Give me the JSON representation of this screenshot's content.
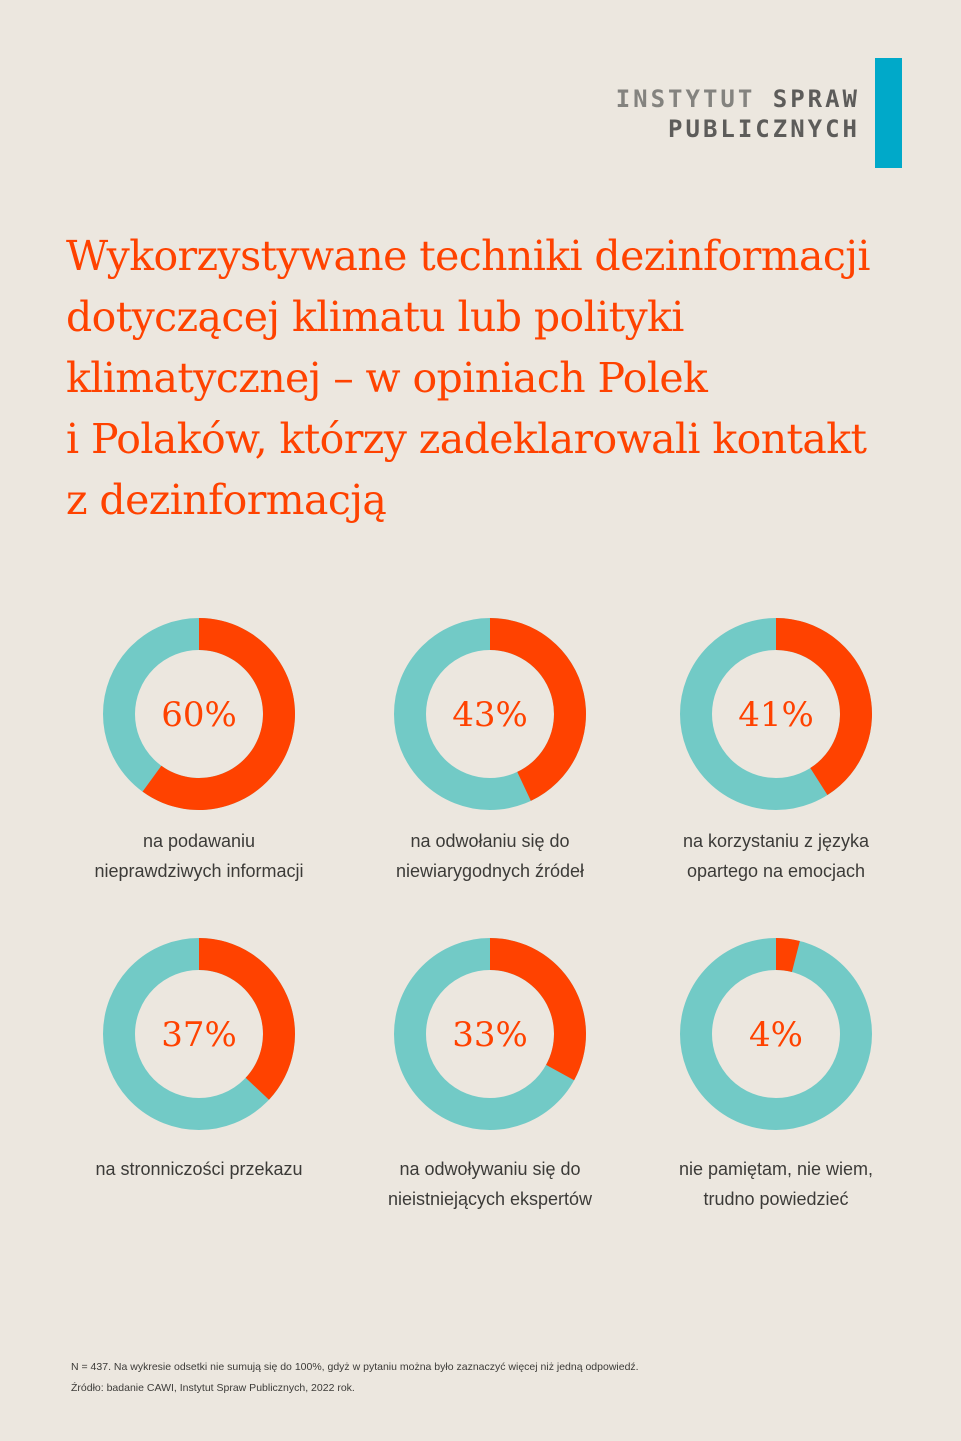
{
  "colors": {
    "accent": "#ff4200",
    "rest": "#72cac6",
    "background": "#ece7df",
    "logo_bar": "#00a9c9"
  },
  "logo": {
    "line1_a": "INSTYTUT",
    "line1_b": "SPRAW",
    "line2": "PUBLICZNYCH"
  },
  "title": "Wykorzystywane techniki dezinformacji\ndotyczącej klimatu lub polityki\nklimatycznej – w opiniach Polek\ni Polaków, którzy zadeklarowali kontakt\nz dezinformacją",
  "chart_data": {
    "type": "pie",
    "variant": "donut",
    "unit": "%",
    "items": [
      {
        "label": "na podawaniu\nnieprawdziwych informacji",
        "value": 60,
        "value_label": "60%"
      },
      {
        "label": "na odwołaniu się do\nniewiarygodnych źródeł",
        "value": 43,
        "value_label": "43%"
      },
      {
        "label": "na korzystaniu z języka\nopartego na emocjach",
        "value": 41,
        "value_label": "41%"
      },
      {
        "label": "na stronniczości przekazu",
        "value": 37,
        "value_label": "37%"
      },
      {
        "label": "na odwoływaniu się do\nnieistniejących ekspertów",
        "value": 33,
        "value_label": "33%"
      },
      {
        "label": "nie pamiętam, nie wiem,\ntrudno powiedzieć",
        "value": 4,
        "value_label": "4%"
      }
    ]
  },
  "footnote": {
    "note": "N = 437. Na wykresie odsetki nie sumują się do 100%, gdyż w pytaniu można było zaznaczyć więcej niż jedną odpowiedź.",
    "source": "Źródło: badanie CAWI, Instytut Spraw Publicznych, 2022 rok."
  }
}
